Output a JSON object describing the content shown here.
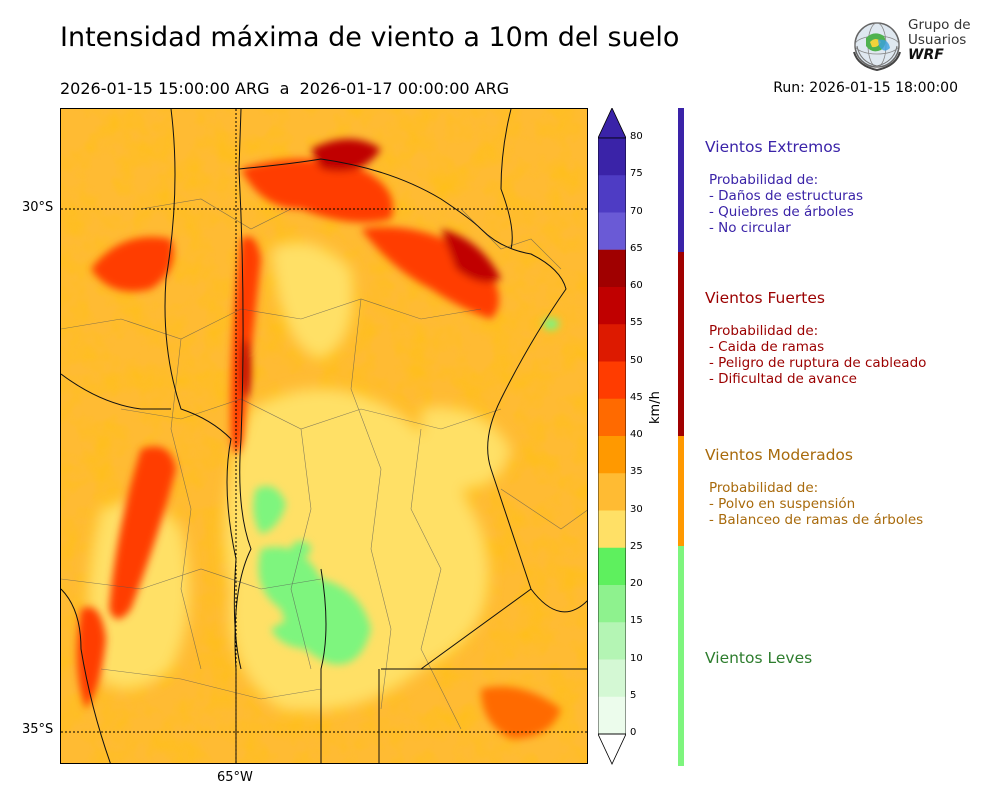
{
  "header": {
    "title": "Intensidad máxima de viento a 10m del suelo",
    "period": "2026-01-15 15:00:00 ARG  a  2026-01-17 00:00:00 ARG",
    "run": "Run: 2026-01-15 18:00:00"
  },
  "logo": {
    "line1": "Grupo de",
    "line2": "Usuarios",
    "line3": "WRF"
  },
  "map": {
    "lat_labels": [
      "30°S",
      "35°S"
    ],
    "lon_labels": [
      "65°W"
    ]
  },
  "colorbar": {
    "unit": "km/h",
    "ticks": [
      "80",
      "75",
      "70",
      "65",
      "60",
      "55",
      "50",
      "45",
      "40",
      "35",
      "30",
      "25",
      "20",
      "15",
      "10",
      "5",
      "0"
    ],
    "colors": [
      "#3a23a8",
      "#4e3cc4",
      "#6a5ad6",
      "#a00000",
      "#c00000",
      "#dd1a00",
      "#ff3c00",
      "#ff6a00",
      "#ff9900",
      "#ffbb33",
      "#ffe066",
      "#5ef05e",
      "#8ef28e",
      "#b4f5b4",
      "#d4f8d4",
      "#ecfcec"
    ]
  },
  "categories": [
    {
      "title": "Vientos Extremos",
      "color": "#3a23a8",
      "lines": [
        "Probabilidad de:",
        "- Daños de estructuras",
        "- Quiebres de árboles",
        "- No circular"
      ]
    },
    {
      "title": "Vientos Fuertes",
      "color": "#9b0000",
      "lines": [
        "Probabilidad de:",
        "- Caida de ramas",
        "- Peligro de ruptura de cableado",
        "- Dificultad de avance"
      ]
    },
    {
      "title": "Vientos Moderados",
      "color": "#a86a0c",
      "lines": [
        "Probabilidad de:",
        "- Polvo en suspensión",
        "- Balanceo de ramas de árboles"
      ]
    },
    {
      "title": "Vientos Leves",
      "color": "#2e7d2e",
      "lines": []
    }
  ]
}
